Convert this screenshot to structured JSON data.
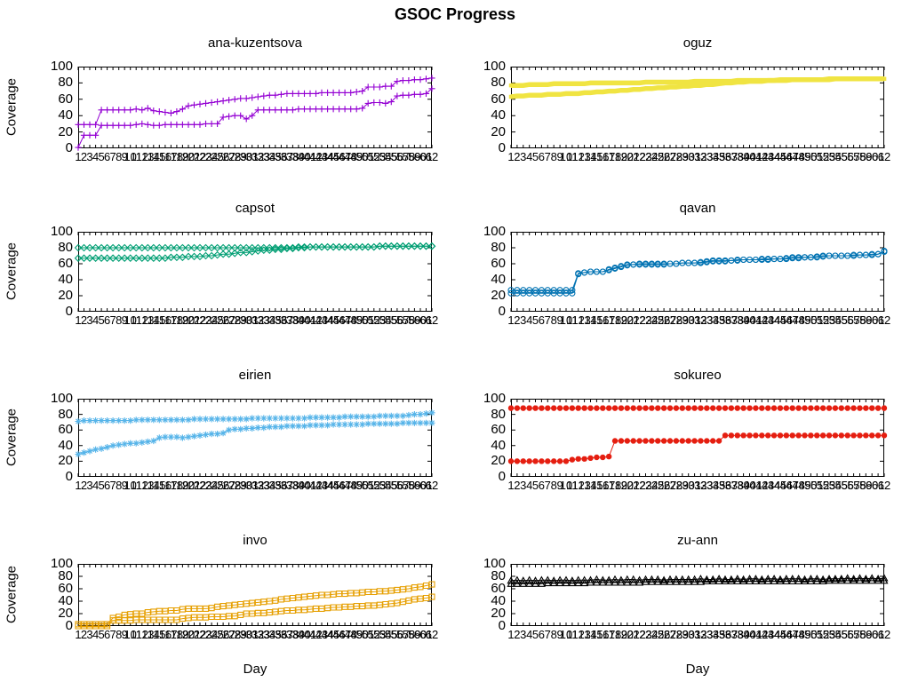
{
  "chart_data": {
    "type": "line",
    "suptitle": "GSOC Progress",
    "layout": "4 rows x 2 columns of subplots, no legend, no grid",
    "xlabel": "Day",
    "ylabel": "Coverage",
    "x_range": [
      1,
      62
    ],
    "x_tick_step": 1,
    "y_range": [
      0,
      100
    ],
    "y_ticks": [
      0,
      20,
      40,
      60,
      80,
      100
    ],
    "axis_color": "#000000",
    "charts": [
      {
        "title": "ana-kuzentsova",
        "color": "#9400d3",
        "marker": "plus",
        "line_width": 1,
        "series": [
          [
            29,
            29,
            29,
            29,
            47,
            47,
            47,
            47,
            47,
            47,
            48,
            47,
            49,
            46,
            45,
            44,
            43,
            45,
            48,
            52,
            53,
            54,
            55,
            56,
            57,
            58,
            59,
            60,
            61,
            61,
            62,
            63,
            64,
            65,
            65,
            66,
            67,
            67,
            67,
            67,
            67,
            67,
            68,
            68,
            68,
            68,
            68,
            68,
            69,
            70,
            75,
            75,
            75,
            76,
            76,
            82,
            83,
            83,
            84,
            84,
            85,
            86
          ],
          [
            1,
            16,
            16,
            16,
            28,
            28,
            28,
            28,
            28,
            28,
            29,
            30,
            29,
            28,
            28,
            29,
            29,
            29,
            29,
            29,
            29,
            29,
            30,
            30,
            30,
            38,
            39,
            40,
            40,
            36,
            40,
            47,
            47,
            47,
            47,
            47,
            47,
            47,
            48,
            48,
            48,
            48,
            48,
            48,
            48,
            48,
            48,
            48,
            48,
            49,
            55,
            56,
            56,
            55,
            57,
            64,
            65,
            65,
            66,
            66,
            67,
            73
          ]
        ]
      },
      {
        "title": "oguz",
        "color": "#f0e442",
        "marker": "filled-square",
        "line_width": 5.5,
        "series": [
          [
            77,
            77,
            77,
            78,
            78,
            78,
            78,
            79,
            79,
            79,
            79,
            79,
            79,
            80,
            80,
            80,
            80,
            80,
            80,
            80,
            80,
            80,
            81,
            81,
            81,
            81,
            81,
            81,
            81,
            81,
            82,
            82,
            82,
            82,
            82,
            82,
            82,
            83,
            83,
            83,
            83,
            83,
            83,
            83,
            84,
            84,
            84,
            84,
            84,
            84,
            84,
            84,
            85,
            85,
            85,
            85,
            85,
            85,
            85,
            85,
            85,
            85
          ],
          [
            63,
            64,
            64,
            65,
            65,
            65,
            66,
            66,
            66,
            67,
            67,
            67,
            68,
            68,
            69,
            69,
            70,
            70,
            71,
            71,
            72,
            72,
            73,
            73,
            74,
            74,
            75,
            75,
            76,
            76,
            77,
            77,
            78,
            78,
            79,
            80,
            80,
            81,
            81,
            82,
            82,
            82,
            83,
            83,
            83,
            83,
            84,
            84,
            84,
            84,
            84,
            84,
            84,
            85,
            85,
            85,
            85,
            85,
            85,
            85,
            85,
            85
          ]
        ]
      },
      {
        "title": "capsot",
        "color": "#009e73",
        "marker": "diamond",
        "line_width": 1,
        "series": [
          [
            80,
            80,
            80,
            80,
            80,
            80,
            80,
            80,
            80,
            80,
            80,
            80,
            80,
            80,
            80,
            80,
            80,
            80,
            80,
            80,
            80,
            80,
            80,
            80,
            80,
            80,
            80,
            80,
            80,
            80,
            80,
            80,
            80,
            80,
            80,
            80,
            80,
            80,
            81,
            81,
            81,
            81,
            81,
            81,
            81,
            81,
            81,
            81,
            81,
            81,
            81,
            81,
            82,
            82,
            82,
            82,
            82,
            82,
            82,
            82,
            82,
            82
          ],
          [
            67,
            67,
            67,
            67,
            67,
            67,
            67,
            67,
            67,
            67,
            67,
            67,
            67,
            67,
            67,
            67,
            68,
            68,
            68,
            69,
            69,
            69,
            70,
            70,
            71,
            72,
            72,
            73,
            74,
            74,
            75,
            76,
            77,
            77,
            78,
            78,
            79,
            79,
            80,
            80,
            81,
            81,
            81,
            81,
            81,
            81,
            81,
            81,
            81,
            81,
            81,
            81,
            82,
            82,
            82,
            82,
            82,
            82,
            82,
            82,
            82,
            82
          ]
        ]
      },
      {
        "title": "qavan",
        "color": "#0072b2",
        "marker": "circle",
        "line_width": 1,
        "series": [
          [
            27,
            27,
            27,
            27,
            27,
            27,
            27,
            27,
            27,
            27,
            27,
            48,
            49,
            50,
            50,
            50,
            53,
            55,
            57,
            59,
            59,
            60,
            60,
            60,
            60,
            60,
            60,
            60,
            61,
            61,
            61,
            62,
            63,
            64,
            64,
            64,
            64,
            65,
            65,
            65,
            65,
            66,
            66,
            66,
            66,
            67,
            68,
            68,
            68,
            68,
            69,
            70,
            70,
            70,
            70,
            70,
            71,
            71,
            71,
            72,
            72,
            76
          ],
          [
            23,
            23,
            23,
            23,
            23,
            23,
            23,
            23,
            23,
            23,
            23,
            47,
            49,
            50,
            50,
            50,
            52,
            54,
            56,
            58,
            59,
            59,
            59,
            59,
            59,
            59,
            60,
            60,
            61,
            61,
            61,
            61,
            62,
            63,
            63,
            63,
            64,
            64,
            65,
            65,
            65,
            65,
            65,
            66,
            66,
            66,
            67,
            67,
            68,
            68,
            68,
            69,
            70,
            70,
            70,
            70,
            70,
            71,
            71,
            71,
            72,
            75
          ]
        ]
      },
      {
        "title": "eirien",
        "color": "#56b4e9",
        "marker": "asterisk",
        "line_width": 1,
        "series": [
          [
            71,
            72,
            72,
            72,
            72,
            72,
            72,
            72,
            72,
            72,
            73,
            73,
            73,
            73,
            73,
            73,
            73,
            73,
            73,
            73,
            74,
            74,
            74,
            74,
            74,
            74,
            74,
            74,
            74,
            74,
            75,
            75,
            75,
            75,
            75,
            75,
            75,
            75,
            75,
            75,
            76,
            76,
            76,
            76,
            76,
            76,
            77,
            77,
            77,
            77,
            77,
            77,
            78,
            78,
            78,
            78,
            78,
            79,
            80,
            80,
            81,
            82
          ],
          [
            29,
            31,
            33,
            35,
            36,
            38,
            40,
            41,
            42,
            43,
            43,
            44,
            45,
            46,
            50,
            51,
            51,
            51,
            50,
            51,
            52,
            53,
            54,
            55,
            55,
            56,
            60,
            61,
            61,
            62,
            62,
            63,
            63,
            64,
            64,
            64,
            65,
            65,
            65,
            65,
            66,
            66,
            66,
            66,
            67,
            67,
            67,
            67,
            67,
            67,
            68,
            68,
            68,
            68,
            68,
            68,
            69,
            69,
            69,
            69,
            69,
            69
          ]
        ]
      },
      {
        "title": "sokureo",
        "color": "#e51e10",
        "marker": "star",
        "line_width": 1,
        "series": [
          [
            88,
            88,
            88,
            88,
            88,
            88,
            88,
            88,
            88,
            88,
            88,
            88,
            88,
            88,
            88,
            88,
            88,
            88,
            88,
            88,
            88,
            88,
            88,
            88,
            88,
            88,
            88,
            88,
            88,
            88,
            88,
            88,
            88,
            88,
            88,
            88,
            88,
            88,
            88,
            88,
            88,
            88,
            88,
            88,
            88,
            88,
            88,
            88,
            88,
            88,
            88,
            88,
            88,
            88,
            88,
            88,
            88,
            88,
            88,
            88,
            88,
            88
          ],
          [
            20,
            20,
            20,
            20,
            20,
            20,
            20,
            20,
            20,
            20,
            22,
            23,
            23,
            24,
            25,
            25,
            26,
            46,
            46,
            46,
            46,
            46,
            46,
            46,
            46,
            46,
            46,
            46,
            46,
            46,
            46,
            46,
            46,
            46,
            46,
            53,
            53,
            53,
            53,
            53,
            53,
            53,
            53,
            53,
            53,
            53,
            53,
            53,
            53,
            53,
            53,
            53,
            53,
            53,
            53,
            53,
            53,
            53,
            53,
            53,
            53,
            53
          ]
        ]
      },
      {
        "title": "invo",
        "color": "#e69f00",
        "marker": "square",
        "line_width": 1,
        "series": [
          [
            3,
            3,
            3,
            3,
            3,
            3,
            13,
            15,
            18,
            19,
            20,
            20,
            22,
            23,
            24,
            24,
            25,
            25,
            27,
            28,
            28,
            28,
            28,
            29,
            31,
            32,
            33,
            34,
            35,
            36,
            37,
            38,
            39,
            40,
            41,
            43,
            44,
            45,
            46,
            47,
            48,
            49,
            50,
            50,
            51,
            52,
            52,
            53,
            53,
            54,
            55,
            55,
            56,
            56,
            57,
            58,
            59,
            60,
            62,
            63,
            65,
            67
          ],
          [
            0,
            0,
            0,
            0,
            0,
            0,
            9,
            9,
            9,
            9,
            10,
            10,
            10,
            10,
            10,
            10,
            10,
            10,
            12,
            13,
            14,
            14,
            14,
            15,
            15,
            15,
            16,
            16,
            18,
            20,
            20,
            21,
            21,
            22,
            23,
            24,
            25,
            25,
            26,
            26,
            27,
            28,
            28,
            29,
            30,
            30,
            31,
            31,
            32,
            32,
            33,
            33,
            34,
            35,
            36,
            37,
            39,
            41,
            43,
            44,
            45,
            47
          ]
        ]
      },
      {
        "title": "zu-ann",
        "color": "#000000",
        "marker": "triangle",
        "line_width": 1,
        "series": [
          [
            73,
            74,
            73,
            74,
            73,
            74,
            74,
            73,
            74,
            74,
            73,
            74,
            74,
            74,
            75,
            74,
            74,
            75,
            74,
            75,
            75,
            74,
            75,
            75,
            75,
            74,
            75,
            75,
            75,
            75,
            75,
            76,
            75,
            75,
            76,
            75,
            75,
            76,
            75,
            76,
            76,
            75,
            76,
            76,
            75,
            76,
            76,
            76,
            75,
            76,
            76,
            75,
            76,
            76,
            76,
            77,
            76,
            77,
            76,
            77,
            76,
            77
          ],
          [
            68,
            68,
            68,
            68,
            68,
            68,
            69,
            69,
            69,
            69,
            69,
            69,
            69,
            70,
            70,
            70,
            70,
            70,
            70,
            70,
            70,
            70,
            71,
            71,
            71,
            71,
            71,
            71,
            71,
            71,
            71,
            71,
            72,
            72,
            72,
            72,
            72,
            72,
            72,
            72,
            72,
            72,
            72,
            72,
            72,
            72,
            72,
            72,
            72,
            72,
            72,
            72,
            73,
            73,
            73,
            73,
            73,
            73,
            73,
            73,
            73,
            73
          ]
        ]
      }
    ]
  }
}
